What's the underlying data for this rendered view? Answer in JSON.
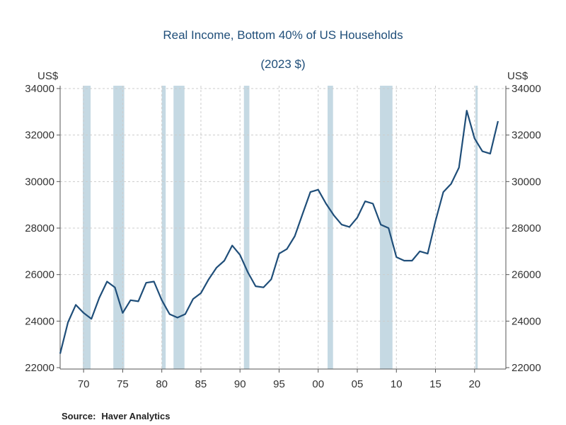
{
  "chart_data": {
    "type": "line",
    "title": "Real Income, Bottom 40% of US Households",
    "subtitle": "(2023 $)",
    "ylabel_left": "US$",
    "ylabel_right": "US$",
    "ylim": [
      22000,
      34000
    ],
    "yticks": [
      22000,
      24000,
      26000,
      28000,
      30000,
      32000,
      34000
    ],
    "xlim": [
      1967,
      2024
    ],
    "xticks": [
      {
        "year": 1970,
        "label": "70"
      },
      {
        "year": 1975,
        "label": "75"
      },
      {
        "year": 1980,
        "label": "80"
      },
      {
        "year": 1985,
        "label": "85"
      },
      {
        "year": 1990,
        "label": "90"
      },
      {
        "year": 1995,
        "label": "95"
      },
      {
        "year": 2000,
        "label": "00"
      },
      {
        "year": 2005,
        "label": "05"
      },
      {
        "year": 2010,
        "label": "10"
      },
      {
        "year": 2015,
        "label": "15"
      },
      {
        "year": 2020,
        "label": "20"
      }
    ],
    "grid": true,
    "series": [
      {
        "name": "Real Income, Bottom 40%",
        "color": "#1f4e79",
        "points": [
          [
            1967,
            22600
          ],
          [
            1968,
            23950
          ],
          [
            1969,
            24700
          ],
          [
            1970,
            24350
          ],
          [
            1971,
            24100
          ],
          [
            1972,
            25000
          ],
          [
            1973,
            25700
          ],
          [
            1974,
            25450
          ],
          [
            1975,
            24350
          ],
          [
            1976,
            24900
          ],
          [
            1977,
            24850
          ],
          [
            1978,
            25650
          ],
          [
            1979,
            25700
          ],
          [
            1980,
            24900
          ],
          [
            1981,
            24300
          ],
          [
            1982,
            24150
          ],
          [
            1983,
            24300
          ],
          [
            1984,
            24950
          ],
          [
            1985,
            25200
          ],
          [
            1986,
            25800
          ],
          [
            1987,
            26300
          ],
          [
            1988,
            26600
          ],
          [
            1989,
            27250
          ],
          [
            1990,
            26850
          ],
          [
            1991,
            26100
          ],
          [
            1992,
            25500
          ],
          [
            1993,
            25450
          ],
          [
            1994,
            25800
          ],
          [
            1995,
            26900
          ],
          [
            1996,
            27100
          ],
          [
            1997,
            27650
          ],
          [
            1998,
            28600
          ],
          [
            1999,
            29550
          ],
          [
            2000,
            29650
          ],
          [
            2001,
            29050
          ],
          [
            2002,
            28550
          ],
          [
            2003,
            28150
          ],
          [
            2004,
            28050
          ],
          [
            2005,
            28450
          ],
          [
            2006,
            29150
          ],
          [
            2007,
            29050
          ],
          [
            2008,
            28150
          ],
          [
            2009,
            28000
          ],
          [
            2010,
            26750
          ],
          [
            2011,
            26600
          ],
          [
            2012,
            26600
          ],
          [
            2013,
            27000
          ],
          [
            2014,
            26900
          ],
          [
            2015,
            28300
          ],
          [
            2016,
            29550
          ],
          [
            2017,
            29900
          ],
          [
            2018,
            30600
          ],
          [
            2019,
            33050
          ],
          [
            2020,
            31850
          ],
          [
            2021,
            31300
          ],
          [
            2022,
            31200
          ],
          [
            2023,
            32600
          ]
        ]
      }
    ],
    "recessions": [
      [
        1969.9,
        1970.9
      ],
      [
        1973.8,
        1975.2
      ],
      [
        1980.0,
        1980.5
      ],
      [
        1981.5,
        1982.9
      ],
      [
        1990.5,
        1991.2
      ],
      [
        2001.2,
        2001.9
      ],
      [
        2007.9,
        2009.5
      ],
      [
        2020.1,
        2020.4
      ]
    ],
    "recession_color": "#c5d9e3"
  },
  "source": {
    "label": "Source:",
    "text": "Haver Analytics"
  }
}
